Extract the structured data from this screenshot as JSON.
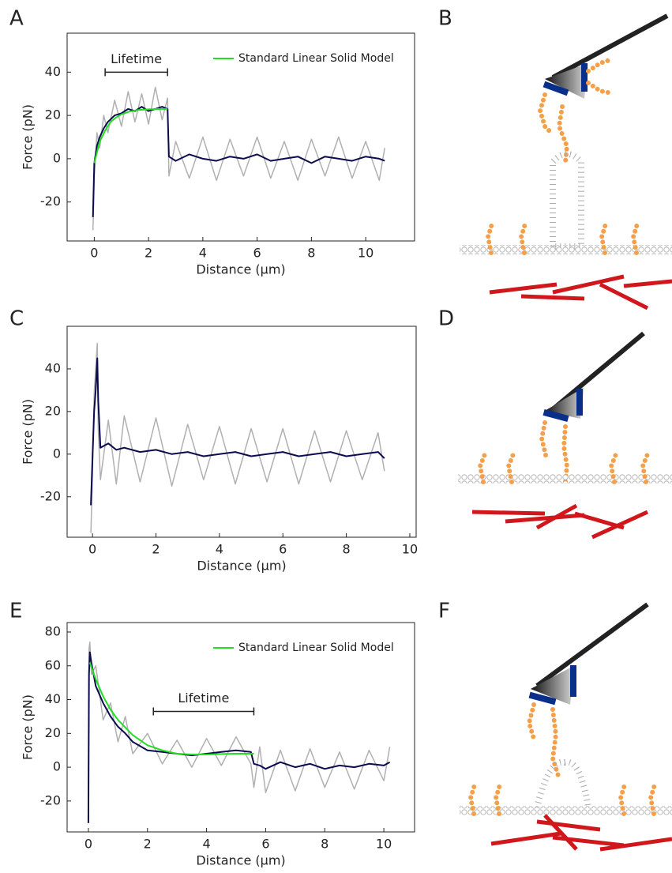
{
  "panels": [
    "A",
    "B",
    "C",
    "D",
    "E",
    "F"
  ],
  "chart_data": [
    {
      "type": "line",
      "xlabel": "Distance (μm)",
      "ylabel": "Force (pN)",
      "xlim": [
        -1,
        11.8
      ],
      "ylim": [
        -38,
        58
      ],
      "xticks": [
        0,
        2,
        4,
        6,
        8,
        10
      ],
      "yticks": [
        -20,
        0,
        20,
        40
      ],
      "legend": "upper right",
      "x": [
        -0.05,
        0,
        0.1,
        0.2,
        0.35,
        0.5,
        0.75,
        1,
        1.25,
        1.5,
        1.75,
        2,
        2.25,
        2.5,
        2.7,
        2.75,
        3,
        3.5,
        4,
        4.5,
        5,
        5.5,
        6,
        6.5,
        7,
        7.5,
        8,
        8.5,
        9,
        9.5,
        10,
        10.5,
        10.7
      ],
      "series": [
        {
          "color": "#b0b0b0",
          "values": [
            -33,
            -8,
            12,
            5,
            20,
            12,
            27,
            15,
            31,
            17,
            30,
            16,
            33,
            18,
            28,
            -8,
            8,
            -9,
            10,
            -10,
            9,
            -8,
            10,
            -9,
            8,
            -10,
            9,
            -8,
            10,
            -9,
            8,
            -10,
            5
          ]
        },
        {
          "color": "#0b0b4d",
          "values": [
            -27,
            -2,
            6,
            10,
            14,
            17,
            20,
            21,
            23,
            22,
            24,
            22,
            23,
            24,
            23,
            1,
            -1,
            2,
            0,
            -1,
            1,
            0,
            2,
            -1,
            0,
            1,
            -2,
            1,
            0,
            -1,
            1,
            0,
            -1
          ]
        },
        {
          "name": "Standard Linear Solid Model",
          "color": "#22dd22",
          "x": [
            0,
            0.2,
            0.4,
            0.6,
            0.8,
            1,
            1.3,
            1.6,
            2,
            2.4,
            2.7
          ],
          "values": [
            -2,
            8,
            13,
            17,
            19,
            20.5,
            21.8,
            22.5,
            22.8,
            23,
            23
          ]
        }
      ],
      "annotations": [
        {
          "text": "Lifetime",
          "x": [
            0.4,
            2.7
          ],
          "y": 40
        }
      ]
    },
    {
      "type": "line",
      "xlabel": "Distance (μm)",
      "ylabel": "Force (pN)",
      "xlim": [
        -0.8,
        10.2
      ],
      "ylim": [
        -39,
        60
      ],
      "xticks": [
        0,
        2,
        4,
        6,
        8,
        10
      ],
      "yticks": [
        -20,
        0,
        20,
        40
      ],
      "x": [
        -0.05,
        0,
        0.05,
        0.1,
        0.15,
        0.18,
        0.25,
        0.5,
        0.75,
        1,
        1.5,
        2,
        2.5,
        3,
        3.5,
        4,
        4.5,
        5,
        5.5,
        6,
        6.5,
        7,
        7.5,
        8,
        8.5,
        9,
        9.2
      ],
      "series": [
        {
          "color": "#b0b0b0",
          "values": [
            -37,
            -10,
            28,
            40,
            52,
            12,
            -12,
            16,
            -14,
            18,
            -13,
            17,
            -15,
            14,
            -12,
            13,
            -14,
            12,
            -13,
            12,
            -14,
            11,
            -13,
            11,
            -12,
            10,
            -8
          ]
        },
        {
          "color": "#0b0b4d",
          "values": [
            -24,
            -2,
            20,
            30,
            45,
            25,
            3,
            5,
            2,
            3,
            1,
            2,
            0,
            1,
            -1,
            0,
            1,
            -1,
            0,
            1,
            -1,
            0,
            1,
            -1,
            0,
            1,
            -2
          ]
        }
      ]
    },
    {
      "type": "line",
      "xlabel": "Distance (μm)",
      "ylabel": "Force (pN)",
      "xlim": [
        -0.72,
        11.04
      ],
      "ylim": [
        -38.3,
        85.6
      ],
      "xticks": [
        0,
        2,
        4,
        6,
        8,
        10
      ],
      "yticks": [
        -20,
        0,
        20,
        40,
        60,
        80
      ],
      "legend": "upper right",
      "x": [
        0,
        0.02,
        0.05,
        0.1,
        0.25,
        0.5,
        0.75,
        1,
        1.25,
        1.5,
        2,
        2.5,
        3,
        3.5,
        4,
        4.5,
        5,
        5.5,
        5.6,
        5.8,
        6,
        6.5,
        7,
        7.5,
        8,
        8.5,
        9,
        9.5,
        10,
        10.2
      ],
      "series": [
        {
          "color": "#b0b0b0",
          "values": [
            -33,
            70,
            74,
            55,
            60,
            28,
            38,
            15,
            30,
            8,
            20,
            2,
            16,
            0,
            17,
            1,
            18,
            2,
            -12,
            12,
            -15,
            10,
            -14,
            11,
            -12,
            9,
            -13,
            10,
            -8,
            12
          ]
        },
        {
          "color": "#0b0b4d",
          "values": [
            -33,
            55,
            68,
            62,
            48,
            38,
            30,
            24,
            20,
            15,
            10,
            9,
            8,
            7,
            8,
            9,
            10,
            9,
            2,
            1,
            -1,
            3,
            0,
            2,
            -1,
            1,
            0,
            2,
            1,
            3
          ]
        },
        {
          "name": "Standard Linear Solid Model",
          "color": "#22dd22",
          "x": [
            0.05,
            0.25,
            0.5,
            0.75,
            1,
            1.5,
            2,
            2.5,
            3,
            3.5,
            4,
            4.5,
            5,
            5.6
          ],
          "values": [
            62,
            52,
            42,
            34,
            28,
            19,
            13,
            10,
            8,
            7.5,
            7.5,
            7.8,
            8,
            8
          ]
        }
      ],
      "annotations": [
        {
          "text": "Lifetime",
          "x": [
            2.2,
            5.6
          ],
          "y": 33
        }
      ]
    }
  ]
}
